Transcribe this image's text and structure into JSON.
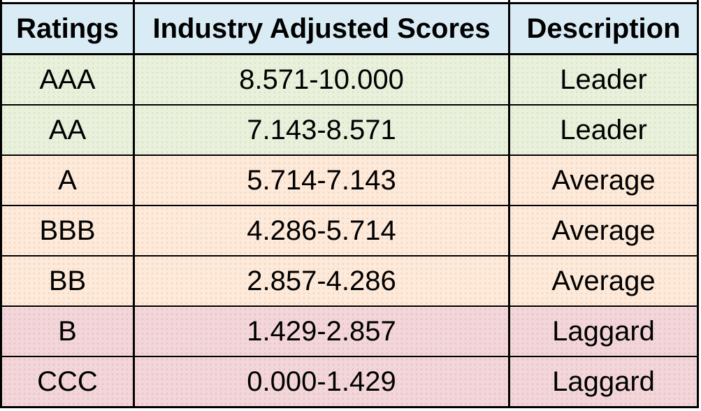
{
  "table": {
    "headers": [
      "Ratings",
      "Industry Adjusted Scores",
      "Description"
    ],
    "rows": [
      {
        "rating": "AAA",
        "scores": "8.571-10.000",
        "description": "Leader",
        "tier": "leader"
      },
      {
        "rating": "AA",
        "scores": "7.143-8.571",
        "description": "Leader",
        "tier": "leader"
      },
      {
        "rating": "A",
        "scores": "5.714-7.143",
        "description": "Average",
        "tier": "average"
      },
      {
        "rating": "BBB",
        "scores": "4.286-5.714",
        "description": "Average",
        "tier": "average"
      },
      {
        "rating": "BB",
        "scores": "2.857-4.286",
        "description": "Average",
        "tier": "average"
      },
      {
        "rating": "B",
        "scores": "1.429-2.857",
        "description": "Laggard",
        "tier": "laggard"
      },
      {
        "rating": "CCC",
        "scores": "0.000-1.429",
        "description": "Laggard",
        "tier": "laggard"
      }
    ]
  },
  "colors": {
    "header_bg": "#d9ecf5",
    "leader_bg": "#e9f1dc",
    "average_bg": "#fdeadb",
    "laggard_bg": "#f2d6d9",
    "border": "#000000",
    "text": "#000000"
  }
}
